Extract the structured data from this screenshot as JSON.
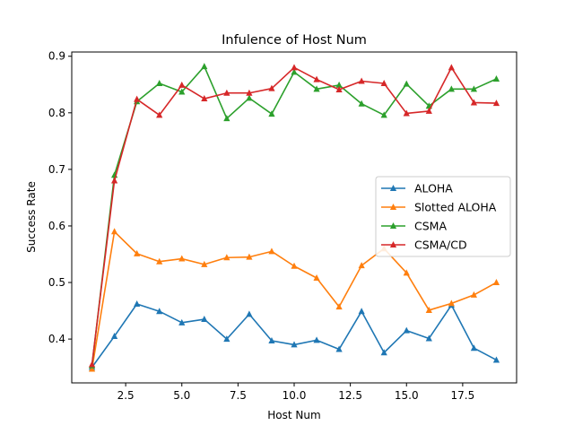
{
  "chart_data": {
    "type": "line",
    "title": "Infulence of Host Num",
    "xlabel": "Host Num",
    "ylabel": "Success Rate",
    "xlim": [
      0.1,
      19.9
    ],
    "ylim": [
      0.3225,
      0.9075
    ],
    "x_ticks": [
      2.5,
      5.0,
      7.5,
      10.0,
      12.5,
      15.0,
      17.5
    ],
    "x_tick_labels": [
      "2.5",
      "5.0",
      "7.5",
      "10.0",
      "12.5",
      "15.0",
      "17.5"
    ],
    "y_ticks": [
      0.4,
      0.5,
      0.6,
      0.7,
      0.8,
      0.9
    ],
    "y_tick_labels": [
      "0.4",
      "0.5",
      "0.6",
      "0.7",
      "0.8",
      "0.9"
    ],
    "grid": false,
    "legend_position": "center-right",
    "x": [
      1,
      2,
      3,
      4,
      5,
      6,
      7,
      8,
      9,
      10,
      11,
      12,
      13,
      14,
      15,
      16,
      17,
      18,
      19
    ],
    "series": [
      {
        "name": "ALOHA",
        "color": "#1f77b4",
        "values": [
          0.35,
          0.405,
          0.462,
          0.449,
          0.429,
          0.435,
          0.4,
          0.444,
          0.397,
          0.39,
          0.398,
          0.382,
          0.449,
          0.376,
          0.415,
          0.401,
          0.46,
          0.384,
          0.363
        ]
      },
      {
        "name": "Slotted ALOHA",
        "color": "#ff7f0e",
        "values": [
          0.347,
          0.59,
          0.551,
          0.537,
          0.542,
          0.532,
          0.544,
          0.545,
          0.555,
          0.529,
          0.508,
          0.457,
          0.53,
          0.56,
          0.517,
          0.451,
          0.463,
          0.478,
          0.5
        ]
      },
      {
        "name": "CSMA",
        "color": "#2ca02c",
        "values": [
          0.353,
          0.69,
          0.82,
          0.852,
          0.837,
          0.882,
          0.79,
          0.826,
          0.798,
          0.872,
          0.842,
          0.849,
          0.816,
          0.796,
          0.851,
          0.812,
          0.842,
          0.842,
          0.86
        ]
      },
      {
        "name": "CSMA/CD",
        "color": "#d62728",
        "values": [
          0.355,
          0.68,
          0.824,
          0.796,
          0.849,
          0.825,
          0.835,
          0.835,
          0.843,
          0.88,
          0.859,
          0.841,
          0.856,
          0.852,
          0.799,
          0.803,
          0.88,
          0.818,
          0.817
        ]
      }
    ]
  }
}
